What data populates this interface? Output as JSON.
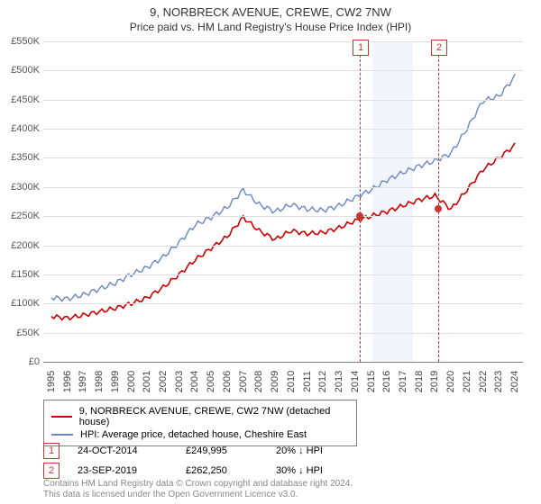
{
  "header": {
    "address": "9, NORBRECK AVENUE, CREWE, CW2 7NW",
    "subtitle": "Price paid vs. HM Land Registry's House Price Index (HPI)"
  },
  "chart": {
    "type": "line",
    "ylim": [
      0,
      550000
    ],
    "ytick_step": 50000,
    "background_color": "#ffffff",
    "grid_color": "#e0e0e0",
    "ylabels": [
      "£0",
      "£50K",
      "£100K",
      "£150K",
      "£200K",
      "£250K",
      "£300K",
      "£350K",
      "£400K",
      "£450K",
      "£500K",
      "£550K"
    ],
    "x_years": [
      1995,
      1996,
      1997,
      1998,
      1999,
      2000,
      2001,
      2002,
      2003,
      2004,
      2005,
      2006,
      2007,
      2008,
      2009,
      2010,
      2011,
      2012,
      2013,
      2014,
      2015,
      2016,
      2017,
      2018,
      2019,
      2020,
      2021,
      2022,
      2023,
      2024
    ],
    "shade_band": {
      "x_start": 2015.6,
      "x_end": 2018.1,
      "color": "#e7ecf7"
    },
    "markers": [
      {
        "num": "1",
        "x": 2014.8,
        "color": "#cc3333",
        "y_value": 249995
      },
      {
        "num": "2",
        "x": 2019.7,
        "color": "#cc3333",
        "y_value": 262250
      }
    ],
    "series_hpi": {
      "color": "#6a88c5",
      "width": 1.4,
      "points": [
        [
          1995,
          110000
        ],
        [
          1996,
          108000
        ],
        [
          1997,
          115000
        ],
        [
          1998,
          125000
        ],
        [
          1999,
          135000
        ],
        [
          2000,
          150000
        ],
        [
          2001,
          162000
        ],
        [
          2002,
          180000
        ],
        [
          2003,
          205000
        ],
        [
          2004,
          235000
        ],
        [
          2005,
          248000
        ],
        [
          2006,
          265000
        ],
        [
          2007,
          295000
        ],
        [
          2008,
          270000
        ],
        [
          2009,
          258000
        ],
        [
          2010,
          270000
        ],
        [
          2011,
          262000
        ],
        [
          2012,
          260000
        ],
        [
          2013,
          268000
        ],
        [
          2014,
          282000
        ],
        [
          2015,
          295000
        ],
        [
          2016,
          312000
        ],
        [
          2017,
          325000
        ],
        [
          2018,
          336000
        ],
        [
          2019,
          345000
        ],
        [
          2020,
          358000
        ],
        [
          2021,
          400000
        ],
        [
          2022,
          448000
        ],
        [
          2023,
          456000
        ],
        [
          2024,
          490000
        ]
      ]
    },
    "series_price": {
      "color": "#cc0000",
      "width": 1.6,
      "points": [
        [
          1995,
          78000
        ],
        [
          1996,
          75000
        ],
        [
          1997,
          80000
        ],
        [
          1998,
          86000
        ],
        [
          1999,
          92000
        ],
        [
          2000,
          100000
        ],
        [
          2001,
          110000
        ],
        [
          2002,
          128000
        ],
        [
          2003,
          150000
        ],
        [
          2004,
          175000
        ],
        [
          2005,
          195000
        ],
        [
          2006,
          215000
        ],
        [
          2007,
          248000
        ],
        [
          2008,
          225000
        ],
        [
          2009,
          210000
        ],
        [
          2010,
          225000
        ],
        [
          2011,
          220000
        ],
        [
          2012,
          222000
        ],
        [
          2013,
          230000
        ],
        [
          2014,
          242000
        ],
        [
          2015,
          250000
        ],
        [
          2016,
          258000
        ],
        [
          2017,
          268000
        ],
        [
          2018,
          278000
        ],
        [
          2019,
          285000
        ],
        [
          2020,
          262000
        ],
        [
          2021,
          295000
        ],
        [
          2022,
          330000
        ],
        [
          2023,
          350000
        ],
        [
          2024,
          372000
        ]
      ]
    }
  },
  "legend": {
    "items": [
      {
        "color": "#cc0000",
        "label": "9, NORBRECK AVENUE, CREWE, CW2 7NW (detached house)"
      },
      {
        "color": "#6a88c5",
        "label": "HPI: Average price, detached house, Cheshire East"
      }
    ]
  },
  "transactions": [
    {
      "num": "1",
      "color": "#cc3333",
      "date": "24-OCT-2014",
      "price": "£249,995",
      "pct": "20% ↓ HPI"
    },
    {
      "num": "2",
      "color": "#cc3333",
      "date": "23-SEP-2019",
      "price": "£262,250",
      "pct": "30% ↓ HPI"
    }
  ],
  "footer": {
    "line1": "Contains HM Land Registry data © Crown copyright and database right 2024.",
    "line2": "This data is licensed under the Open Government Licence v3.0."
  }
}
